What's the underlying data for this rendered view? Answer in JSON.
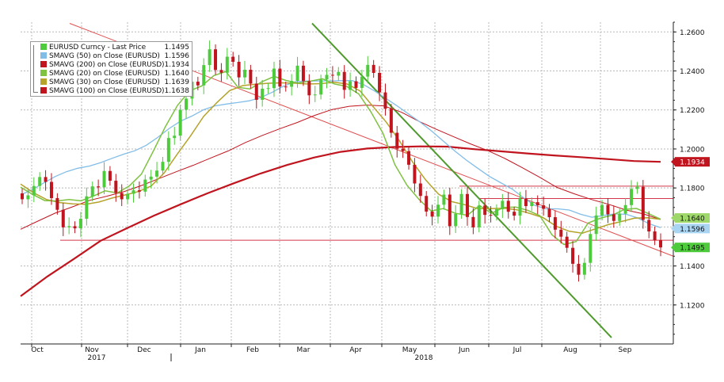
{
  "chart_data": {
    "type": "line",
    "y_axis_ticks": [
      "1.2600",
      "1.2400",
      "1.2200",
      "1.2000",
      "1.1800",
      "1.1600",
      "1.1400",
      "1.1200"
    ],
    "ylim": [
      1.1,
      1.265
    ],
    "x_month_labels": [
      "Oct",
      "Nov",
      "Dec",
      "Jan",
      "Feb",
      "Mar",
      "Apr",
      "May",
      "Jun",
      "Jul",
      "Aug",
      "Sep"
    ],
    "x_year_labels": [
      "2017",
      "2018"
    ],
    "price_candles_close": [
      1.1742,
      1.1762,
      1.181,
      1.1856,
      1.1831,
      1.1748,
      1.1688,
      1.1598,
      1.1604,
      1.1593,
      1.1642,
      1.1757,
      1.1808,
      1.1803,
      1.1887,
      1.1837,
      1.1774,
      1.1742,
      1.177,
      1.1788,
      1.1781,
      1.1843,
      1.1858,
      1.1889,
      1.1934,
      1.2056,
      1.2068,
      1.2201,
      1.2258,
      1.2345,
      1.2326,
      1.243,
      1.2511,
      1.2405,
      1.2391,
      1.2473,
      1.2447,
      1.2367,
      1.2406,
      1.2335,
      1.2252,
      1.2309,
      1.2312,
      1.2412,
      1.232,
      1.2319,
      1.2349,
      1.2427,
      1.2348,
      1.2275,
      1.2279,
      1.2356,
      1.238,
      1.2376,
      1.2395,
      1.2303,
      1.2347,
      1.2313,
      1.2371,
      1.2431,
      1.239,
      1.229,
      1.2206,
      1.2083,
      1.2001,
      1.1989,
      1.1919,
      1.1823,
      1.1759,
      1.1679,
      1.1653,
      1.1714,
      1.1766,
      1.1604,
      1.1667,
      1.1769,
      1.1651,
      1.1598,
      1.171,
      1.1662,
      1.1658,
      1.1691,
      1.1734,
      1.1678,
      1.1658,
      1.1745,
      1.1707,
      1.1727,
      1.1711,
      1.1693,
      1.165,
      1.1586,
      1.155,
      1.1493,
      1.1411,
      1.1355,
      1.1416,
      1.1564,
      1.1659,
      1.1713,
      1.1665,
      1.1631,
      1.1668,
      1.1712,
      1.1795,
      1.1806,
      1.1636,
      1.1577,
      1.1532,
      1.1495
    ],
    "series": [
      {
        "name": "EURUSD Curncy - Last Price",
        "last": "1.1495",
        "color": "#4ecb3c"
      },
      {
        "name": "SMAVG (50)  on Close (EURUSD)",
        "last": "1.1596",
        "color": "#82bde8",
        "values": [
          1.1764,
          1.1791,
          1.1825,
          1.1858,
          1.1883,
          1.1901,
          1.1912,
          1.193,
          1.1952,
          1.1973,
          1.1991,
          1.2019,
          1.2059,
          1.2105,
          1.2143,
          1.2169,
          1.2201,
          1.2221,
          1.223,
          1.2238,
          1.2247,
          1.2263,
          1.229,
          1.2322,
          1.2344,
          1.2348,
          1.2349,
          1.2349,
          1.235,
          1.2351,
          1.233,
          1.2296,
          1.2258,
          1.2219,
          1.2177,
          1.2136,
          1.209,
          1.2039,
          1.1989,
          1.1943,
          1.1901,
          1.186,
          1.1827,
          1.1795,
          1.175,
          1.171,
          1.1693,
          1.1693,
          1.1687,
          1.1665,
          1.165,
          1.1659,
          1.1667,
          1.1665,
          1.1646,
          1.1616,
          1.1596
        ]
      },
      {
        "name": "SMAVG (200)  on Close (EURUSD)",
        "last": "1.1934",
        "color": "#c0141e",
        "values": [
          1.1245,
          1.1346,
          1.1436,
          1.1529,
          1.1594,
          1.1658,
          1.1716,
          1.1772,
          1.1824,
          1.1874,
          1.1918,
          1.1956,
          1.1985,
          1.2002,
          1.201,
          1.2013,
          1.2012,
          1.1999,
          1.1988,
          1.1977,
          1.1967,
          1.1958,
          1.1948,
          1.1938,
          1.1934
        ]
      },
      {
        "name": "SMAVG (20)  on Close (EURUSD)",
        "last": "1.1640",
        "color": "#7fc242",
        "values": [
          1.1804,
          1.1767,
          1.1735,
          1.1733,
          1.1741,
          1.1734,
          1.1758,
          1.1785,
          1.1774,
          1.181,
          1.1871,
          1.199,
          1.2115,
          1.2224,
          1.2298,
          1.2323,
          1.2376,
          1.2397,
          1.2316,
          1.2308,
          1.2345,
          1.2372,
          1.2351,
          1.2338,
          1.2348,
          1.236,
          1.2333,
          1.2321,
          1.2282,
          1.2191,
          1.2081,
          1.1919,
          1.1814,
          1.1741,
          1.1682,
          1.1694,
          1.167,
          1.166,
          1.171,
          1.167,
          1.17,
          1.1702,
          1.1685,
          1.1658,
          1.156,
          1.151,
          1.1525,
          1.162,
          1.1645,
          1.166,
          1.169,
          1.1695,
          1.1668,
          1.164
        ]
      },
      {
        "name": "SMAVG (30)  on Close (EURUSD)",
        "last": "1.1639",
        "color": "#b5a32b",
        "values": [
          1.182,
          1.1775,
          1.174,
          1.1725,
          1.1718,
          1.1716,
          1.1728,
          1.1748,
          1.1764,
          1.1781,
          1.181,
          1.1878,
          1.1974,
          1.2066,
          1.2166,
          1.2236,
          1.2299,
          1.2325,
          1.2332,
          1.2337,
          1.2339,
          1.2337,
          1.2333,
          1.2335,
          1.2342,
          1.2333,
          1.2297,
          1.2216,
          1.2137,
          1.2042,
          1.1934,
          1.1842,
          1.1768,
          1.173,
          1.1714,
          1.1694,
          1.1694,
          1.1696,
          1.1688,
          1.1669,
          1.1648,
          1.1604,
          1.1578,
          1.1568,
          1.159,
          1.1612,
          1.1628,
          1.1645,
          1.1647,
          1.1639
        ]
      },
      {
        "name": "SMAVG (100)  on Close (EURUSD)",
        "last": "1.1638",
        "color": "#c0141e",
        "values": [
          1.1588,
          1.163,
          1.1671,
          1.1703,
          1.1737,
          1.1758,
          1.1782,
          1.1813,
          1.1848,
          1.1883,
          1.1917,
          1.1954,
          1.199,
          1.2033,
          1.207,
          1.2104,
          1.2136,
          1.2172,
          1.2202,
          1.2219,
          1.2225,
          1.2221,
          1.2189,
          1.2143,
          1.2102,
          1.2064,
          1.2026,
          1.1992,
          1.1951,
          1.1904,
          1.1855,
          1.1803,
          1.177,
          1.1741,
          1.1716,
          1.1687,
          1.1667,
          1.1638
        ]
      }
    ],
    "xlabel": "",
    "ylabel": "",
    "grid": true,
    "legend_position": "top-left"
  }
}
